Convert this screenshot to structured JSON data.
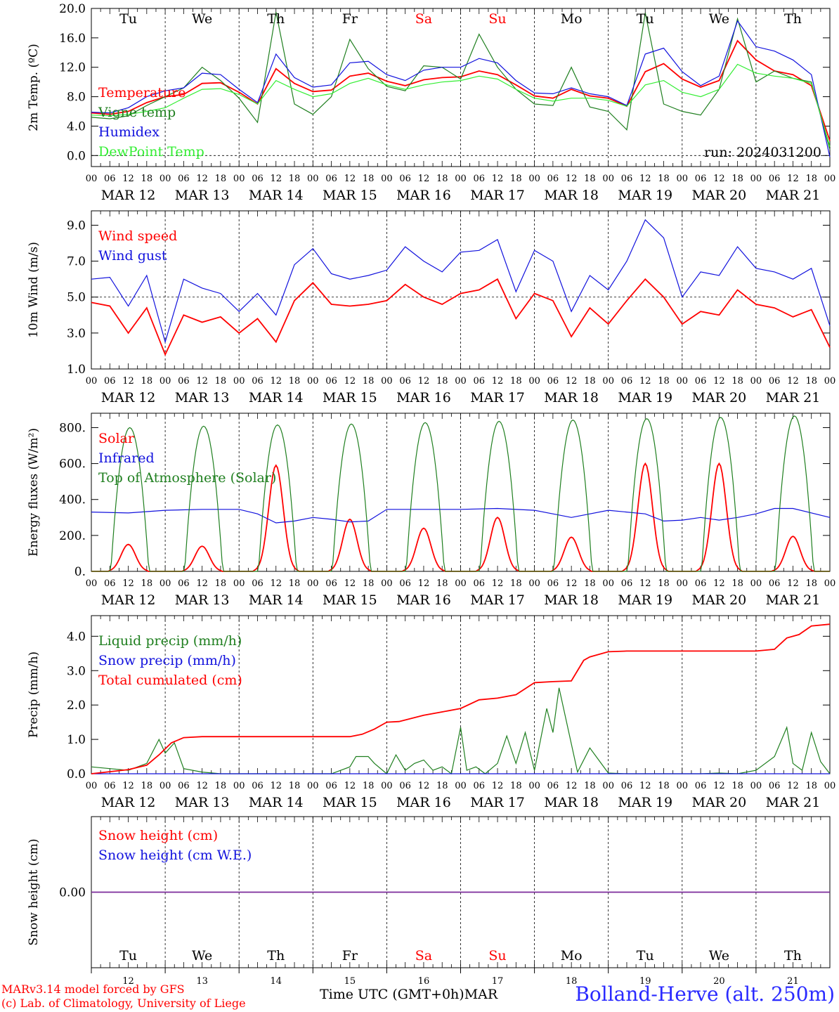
{
  "colors": {
    "red": "#ff0000",
    "green": "#1f7f1f",
    "blue": "#1111dd",
    "lightgreen": "#33ee33",
    "purple": "#7b2a9a"
  },
  "footer": {
    "model": "MARv3.14 model forced by GFS",
    "lab": "(c) Lab. of Climatology, University of Liege",
    "time_label": "Time UTC (GMT+0h)MAR",
    "station": "Bolland-Herve (alt. 250m)"
  },
  "days": [
    "Tu",
    "We",
    "Th",
    "Fr",
    "Sa",
    "Su",
    "Mo",
    "Tu",
    "We",
    "Th"
  ],
  "weekend_days": [
    "Sa",
    "Su"
  ],
  "dates": [
    "MAR 12",
    "MAR 13",
    "MAR 14",
    "MAR 15",
    "MAR 16",
    "MAR 17",
    "MAR 18",
    "MAR 19",
    "MAR 20",
    "MAR 21"
  ],
  "date_numbers": [
    "12",
    "13",
    "14",
    "15",
    "16",
    "17",
    "18",
    "19",
    "20",
    "21"
  ],
  "hour_ticks": [
    "00",
    "06",
    "12",
    "18"
  ],
  "chart_data": [
    {
      "type": "line",
      "ylabel": "2m Temp. (ºC)",
      "ylim": [
        -1.5,
        20
      ],
      "yticks": [
        "0.0",
        "4.0",
        "8.0",
        "12.0",
        "16.0",
        "20.0"
      ],
      "annotation": "run: 2024031200",
      "series": [
        {
          "name": "Temperature",
          "color": "red",
          "x": [
            0,
            6,
            12,
            18,
            24,
            30,
            36,
            42,
            48,
            54,
            60,
            66,
            72,
            78,
            84,
            90,
            96,
            102,
            108,
            114,
            120,
            126,
            132,
            138,
            144,
            150,
            156,
            162,
            168,
            174,
            180,
            186,
            192,
            198,
            204,
            210,
            216,
            222,
            228,
            234,
            240
          ],
          "values": [
            5.8,
            5.6,
            6.0,
            7.2,
            8.0,
            8.3,
            9.8,
            9.9,
            8.6,
            7.0,
            11.8,
            9.8,
            8.7,
            8.9,
            10.8,
            11.2,
            10.1,
            9.5,
            10.3,
            10.6,
            10.7,
            11.5,
            11.0,
            9.6,
            8.1,
            7.8,
            9.0,
            8.1,
            7.8,
            6.7,
            11.4,
            12.5,
            10.4,
            9.3,
            10.2,
            15.6,
            13.0,
            11.5,
            11.0,
            9.5,
            2.0
          ]
        },
        {
          "name": "Vigne temp",
          "color": "green",
          "x": [
            0,
            6,
            12,
            18,
            24,
            30,
            36,
            42,
            48,
            54,
            60,
            66,
            72,
            78,
            84,
            90,
            96,
            102,
            108,
            114,
            120,
            126,
            132,
            138,
            144,
            150,
            156,
            162,
            168,
            174,
            180,
            186,
            192,
            198,
            204,
            210,
            216,
            222,
            228,
            234,
            240
          ],
          "values": [
            5.2,
            5.0,
            5.4,
            6.8,
            8.0,
            9.2,
            12.0,
            10.2,
            7.8,
            4.5,
            19.5,
            7.0,
            5.6,
            8.0,
            15.8,
            11.8,
            9.4,
            8.8,
            12.2,
            12.0,
            10.4,
            16.5,
            12.0,
            9.0,
            7.0,
            6.8,
            12.0,
            6.6,
            6.0,
            3.5,
            19.4,
            7.0,
            6.0,
            5.5,
            9.0,
            18.6,
            10.0,
            11.5,
            10.5,
            10.0,
            0.8
          ]
        },
        {
          "name": "Humidex",
          "color": "blue",
          "x": [
            0,
            6,
            12,
            18,
            24,
            30,
            36,
            42,
            48,
            54,
            60,
            66,
            72,
            78,
            84,
            90,
            96,
            102,
            108,
            114,
            120,
            126,
            132,
            138,
            144,
            150,
            156,
            162,
            168,
            174,
            180,
            186,
            192,
            198,
            204,
            210,
            216,
            222,
            228,
            234,
            240
          ],
          "values": [
            5.9,
            5.8,
            6.5,
            8.0,
            8.8,
            9.2,
            11.2,
            11.0,
            9.0,
            7.2,
            13.8,
            10.6,
            9.3,
            9.6,
            12.6,
            12.8,
            11.0,
            10.2,
            11.6,
            12.0,
            12.0,
            13.2,
            12.6,
            10.2,
            8.5,
            8.4,
            9.2,
            8.4,
            8.0,
            6.8,
            13.8,
            14.6,
            11.4,
            9.5,
            10.8,
            18.3,
            14.8,
            14.2,
            13.0,
            11.0,
            -0.2
          ]
        },
        {
          "name": "DewPoint Temp",
          "color": "lightgreen",
          "x": [
            0,
            6,
            12,
            18,
            24,
            30,
            36,
            42,
            48,
            54,
            60,
            66,
            72,
            78,
            84,
            90,
            96,
            102,
            108,
            114,
            120,
            126,
            132,
            138,
            144,
            150,
            156,
            162,
            168,
            174,
            180,
            186,
            192,
            198,
            204,
            210,
            216,
            222,
            228,
            234,
            240
          ],
          "values": [
            5.5,
            5.4,
            5.6,
            6.0,
            6.5,
            7.8,
            9.0,
            9.1,
            8.3,
            7.0,
            10.2,
            9.0,
            8.0,
            8.4,
            9.8,
            10.5,
            9.6,
            9.0,
            9.6,
            10.0,
            10.2,
            10.8,
            10.4,
            9.0,
            7.8,
            7.4,
            7.8,
            7.8,
            7.5,
            6.7,
            9.6,
            10.2,
            8.6,
            8.0,
            9.0,
            12.4,
            11.2,
            10.8,
            10.5,
            9.8,
            1.2
          ]
        }
      ]
    },
    {
      "type": "line",
      "ylabel": "10m Wind (m/s)",
      "ylim": [
        1.0,
        9.8
      ],
      "yticks": [
        "1.0",
        "3.0",
        "5.0",
        "7.0",
        "9.0"
      ],
      "series": [
        {
          "name": "Wind speed",
          "color": "red",
          "x": [
            0,
            6,
            12,
            18,
            24,
            30,
            36,
            42,
            48,
            54,
            60,
            66,
            72,
            78,
            84,
            90,
            96,
            102,
            108,
            114,
            120,
            126,
            132,
            138,
            144,
            150,
            156,
            162,
            168,
            174,
            180,
            186,
            192,
            198,
            204,
            210,
            216,
            222,
            228,
            234,
            240
          ],
          "values": [
            4.7,
            4.5,
            3.0,
            4.4,
            1.8,
            4.0,
            3.6,
            3.9,
            3.0,
            3.8,
            2.5,
            4.8,
            5.8,
            4.6,
            4.5,
            4.6,
            4.8,
            5.7,
            5.0,
            4.6,
            5.2,
            5.4,
            6.0,
            3.8,
            5.2,
            4.8,
            2.8,
            4.4,
            3.5,
            4.8,
            6.0,
            5.0,
            3.5,
            4.2,
            4.0,
            5.4,
            4.6,
            4.4,
            3.9,
            4.3,
            2.2
          ]
        },
        {
          "name": "Wind gust",
          "color": "blue",
          "x": [
            0,
            6,
            12,
            18,
            24,
            30,
            36,
            42,
            48,
            54,
            60,
            66,
            72,
            78,
            84,
            90,
            96,
            102,
            108,
            114,
            120,
            126,
            132,
            138,
            144,
            150,
            156,
            162,
            168,
            174,
            180,
            186,
            192,
            198,
            204,
            210,
            216,
            222,
            228,
            234,
            240
          ],
          "values": [
            6.0,
            6.1,
            4.5,
            6.2,
            2.5,
            6.0,
            5.5,
            5.2,
            4.2,
            5.2,
            4.0,
            6.8,
            7.7,
            6.3,
            6.0,
            6.2,
            6.5,
            7.8,
            7.0,
            6.4,
            7.5,
            7.6,
            8.2,
            5.3,
            7.6,
            7.0,
            4.2,
            6.2,
            5.4,
            7.0,
            9.3,
            8.3,
            5.0,
            6.4,
            6.2,
            7.8,
            6.6,
            6.4,
            6.0,
            6.6,
            3.4
          ]
        }
      ]
    },
    {
      "type": "line",
      "ylabel": "Energy fluxes (W/m²)",
      "ylim": [
        0,
        880
      ],
      "yticks": [
        "0.",
        "200.",
        "400.",
        "600.",
        "800."
      ],
      "series": [
        {
          "name": "Solar",
          "color": "red",
          "peaks": [
            150,
            140,
            590,
            290,
            240,
            300,
            190,
            600,
            600,
            195
          ]
        },
        {
          "name": "Infrared",
          "color": "blue",
          "x": [
            0,
            12,
            24,
            36,
            48,
            54,
            60,
            66,
            72,
            78,
            84,
            90,
            96,
            108,
            120,
            132,
            144,
            150,
            156,
            168,
            180,
            186,
            192,
            198,
            204,
            210,
            216,
            222,
            228,
            240
          ],
          "values": [
            330,
            325,
            340,
            345,
            345,
            320,
            270,
            280,
            300,
            290,
            275,
            280,
            345,
            345,
            345,
            350,
            340,
            320,
            300,
            340,
            320,
            280,
            285,
            300,
            285,
            300,
            320,
            350,
            350,
            300
          ]
        },
        {
          "name": "Top of Atmosphere (Solar)",
          "color": "green",
          "peaks": [
            800,
            808,
            815,
            820,
            828,
            835,
            842,
            850,
            857,
            865
          ]
        }
      ]
    },
    {
      "type": "line",
      "ylabel": "Precip (mm/h)",
      "ylim": [
        0,
        4.6
      ],
      "yticks": [
        "0.0",
        "1.0",
        "2.0",
        "3.0",
        "4.0"
      ],
      "series": [
        {
          "name": "Liquid precip (mm/h)",
          "color": "green",
          "x": [
            0,
            6,
            12,
            18,
            22,
            24,
            27,
            30,
            36,
            42,
            48,
            54,
            60,
            66,
            72,
            78,
            84,
            86,
            90,
            92,
            96,
            99,
            102,
            105,
            108,
            111,
            114,
            117,
            120,
            122,
            125,
            128,
            132,
            135,
            138,
            141,
            144,
            148,
            150,
            152,
            158,
            162,
            168,
            174,
            180,
            186,
            192,
            198,
            204,
            210,
            216,
            222,
            226,
            228,
            231,
            234,
            237,
            240
          ],
          "values": [
            0.2,
            0.15,
            0.1,
            0.3,
            1.0,
            0.6,
            0.9,
            0.15,
            0.05,
            0.0,
            0.0,
            0.0,
            0.0,
            0.0,
            0.0,
            0.0,
            0.2,
            0.5,
            0.5,
            0.3,
            0.0,
            0.55,
            0.1,
            0.3,
            0.4,
            0.1,
            0.2,
            0.0,
            1.35,
            0.1,
            0.2,
            0.0,
            0.3,
            1.1,
            0.3,
            1.2,
            0.1,
            1.9,
            1.2,
            2.5,
            0.05,
            0.75,
            0.02,
            0.0,
            0.0,
            0.0,
            0.0,
            0.0,
            0.02,
            0.0,
            0.1,
            0.5,
            1.35,
            0.3,
            0.1,
            1.2,
            0.35,
            0.0
          ]
        },
        {
          "name": "Snow precip (mm/h)",
          "color": "blue",
          "x": [
            0,
            240
          ],
          "values": [
            0,
            0
          ]
        },
        {
          "name": "Total cumulated (cm)",
          "color": "red",
          "x": [
            0,
            12,
            18,
            22,
            26,
            30,
            36,
            48,
            60,
            72,
            84,
            88,
            92,
            96,
            100,
            108,
            114,
            120,
            126,
            132,
            138,
            144,
            150,
            156,
            160,
            162,
            168,
            174,
            180,
            186,
            192,
            198,
            204,
            210,
            216,
            222,
            226,
            230,
            234,
            240
          ],
          "values": [
            0.0,
            0.12,
            0.25,
            0.55,
            0.9,
            1.05,
            1.08,
            1.08,
            1.08,
            1.08,
            1.08,
            1.15,
            1.3,
            1.5,
            1.52,
            1.7,
            1.8,
            1.9,
            2.15,
            2.2,
            2.3,
            2.65,
            2.68,
            2.7,
            3.3,
            3.4,
            3.55,
            3.57,
            3.57,
            3.57,
            3.57,
            3.57,
            3.57,
            3.57,
            3.57,
            3.62,
            3.95,
            4.05,
            4.3,
            4.35
          ]
        }
      ]
    },
    {
      "type": "line",
      "ylabel": "Snow height (cm)",
      "ylim": [
        -1,
        1
      ],
      "yticks": [
        "0.00"
      ],
      "series": [
        {
          "name": "Snow height (cm)",
          "color": "red",
          "x": [
            0,
            240
          ],
          "values": [
            0,
            0
          ]
        },
        {
          "name": "Snow height (cm W.E.)",
          "color": "blue",
          "x": [
            0,
            240
          ],
          "values": [
            0,
            0
          ]
        }
      ]
    }
  ]
}
